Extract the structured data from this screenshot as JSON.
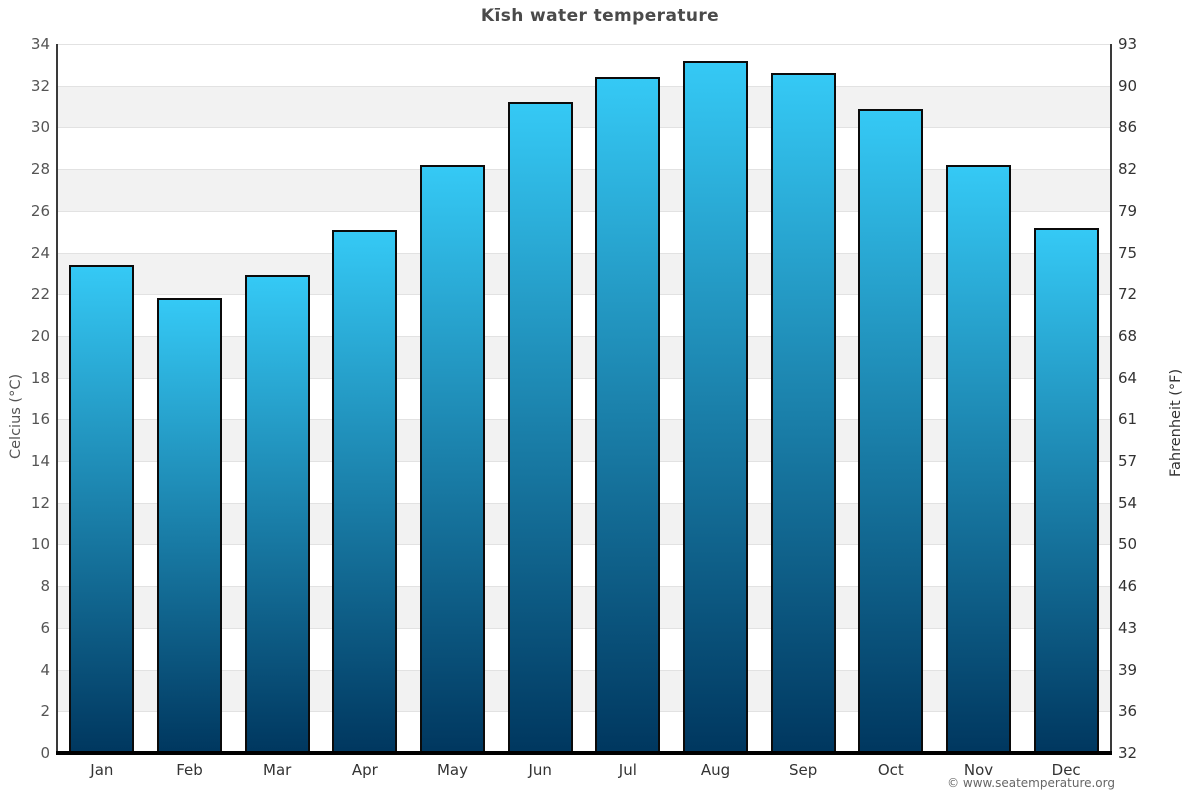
{
  "chart_data": {
    "type": "bar",
    "title": "Kīsh water temperature",
    "categories": [
      "Jan",
      "Feb",
      "Mar",
      "Apr",
      "May",
      "Jun",
      "Jul",
      "Aug",
      "Sep",
      "Oct",
      "Nov",
      "Dec"
    ],
    "values": [
      23.4,
      21.8,
      22.9,
      25.1,
      28.2,
      31.2,
      32.4,
      33.2,
      32.6,
      30.9,
      28.2,
      25.2
    ],
    "xlabel": "",
    "ylabel_left": "Celcius (°C)",
    "ylabel_right": "Fahrenheit (°F)",
    "ylim": [
      0,
      34
    ],
    "ytick_step": 2,
    "yticks_left": [
      34,
      32,
      30,
      28,
      26,
      24,
      22,
      20,
      18,
      16,
      14,
      12,
      10,
      8,
      6,
      4,
      2,
      0
    ],
    "yticks_right": [
      93,
      90,
      86,
      82,
      79,
      75,
      72,
      68,
      64,
      61,
      57,
      54,
      50,
      46,
      43,
      39,
      36,
      32
    ],
    "grid": "alternating horizontal bands every 2°C, no legend",
    "colors": {
      "bar_gradient_top": "#35c9f5",
      "bar_gradient_bottom": "#00375f",
      "bar_border": "#0b0b0b",
      "band_gray": "#f2f2f2",
      "band_white": "#ffffff",
      "gridline": "#e2e2e2",
      "axis_line": "#3a3a3a",
      "bottom_axis": "#000000",
      "title_text": "#4a4a4a"
    }
  },
  "footer": {
    "copyright": "© www.seatemperature.org"
  }
}
